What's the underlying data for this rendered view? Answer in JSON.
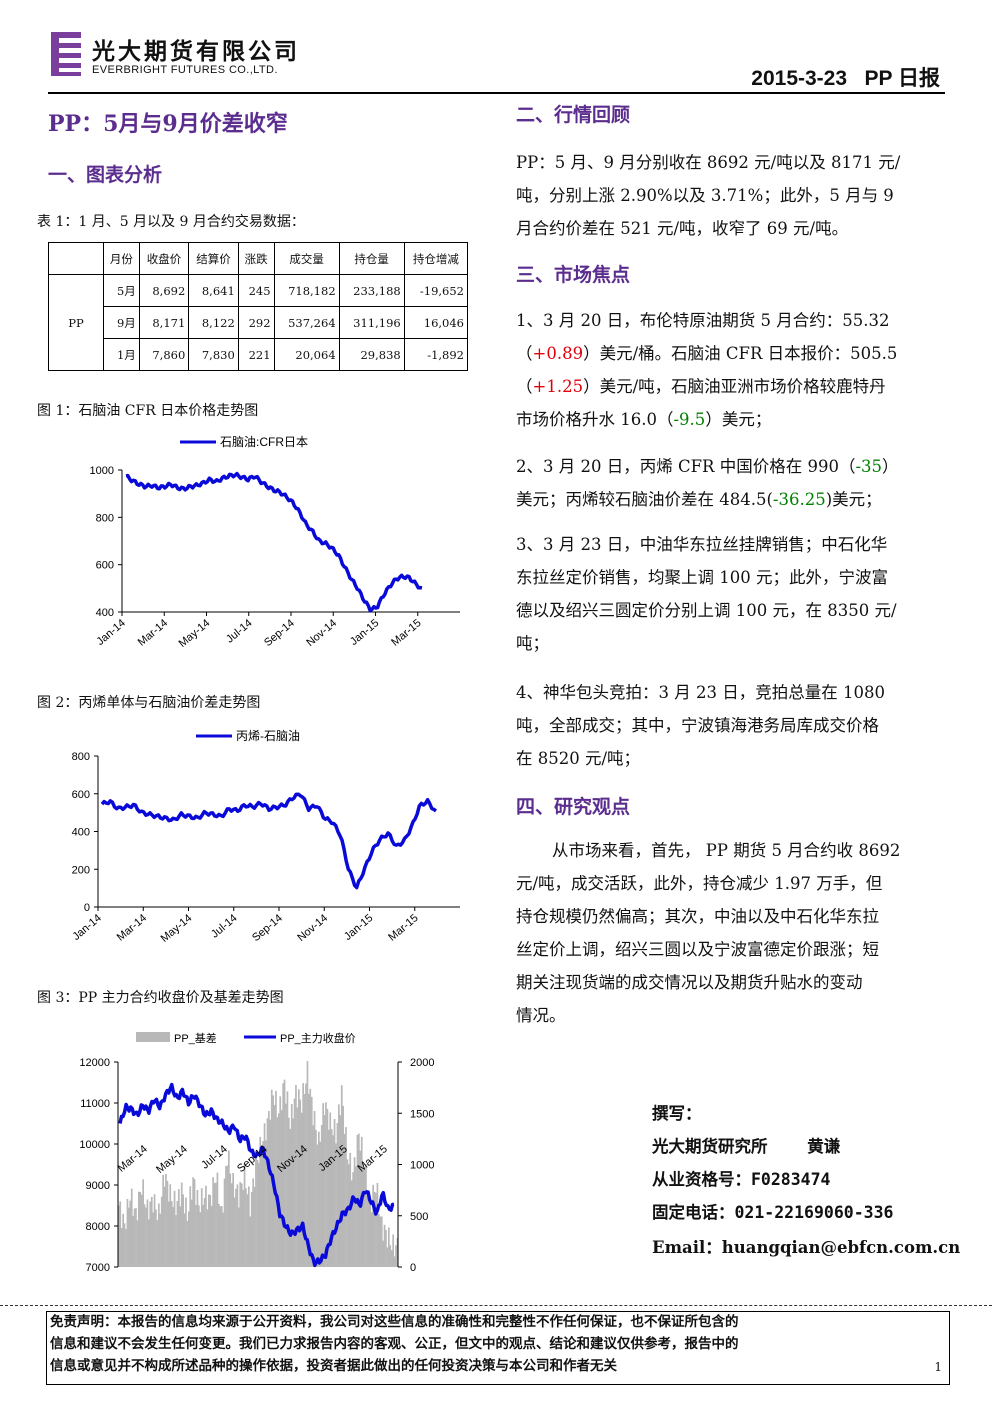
{
  "header": {
    "company_cn": "光大期货有限公司",
    "company_en": "EVERBRIGHT FUTURES CO.,LTD.",
    "date_label": "2015-3-23   PP 日报"
  },
  "report_title": "PP：5月与9月价差收窄",
  "left": {
    "section1": "一、图表分析",
    "table_caption": "表 1：1 月、5 月以及 9 月合约交易数据：",
    "table": {
      "headers": [
        "月份",
        "收盘价",
        "结算价",
        "涨跌",
        "成交量",
        "持仓量",
        "持仓增减"
      ],
      "row_group": "PP",
      "rows": [
        [
          "5月",
          "8,692",
          "8,641",
          "245",
          "718,182",
          "233,188",
          "-19,652"
        ],
        [
          "9月",
          "8,171",
          "8,122",
          "292",
          "537,264",
          "311,196",
          "16,046"
        ],
        [
          "1月",
          "7,860",
          "7,830",
          "221",
          "20,064",
          "29,838",
          "-1,892"
        ]
      ]
    },
    "fig1_caption": "图 1：石脑油 CFR 日本价格走势图",
    "fig2_caption": "图 2：丙烯单体与石脑油价差走势图",
    "fig3_caption": "图 3：PP 主力合约收盘价及基差走势图"
  },
  "chart_data": [
    {
      "type": "line",
      "series": [
        {
          "name": "石脑油:CFR日本",
          "color": "#0a0ad8",
          "values": [
            975,
            955,
            940,
            930,
            935,
            925,
            930,
            940,
            925,
            920,
            930,
            935,
            945,
            960,
            950,
            965,
            975,
            980,
            970,
            960,
            975,
            950,
            930,
            915,
            905,
            885,
            860,
            820,
            770,
            740,
            700,
            690,
            670,
            640,
            590,
            540,
            500,
            450,
            410,
            420,
            470,
            510,
            540,
            550,
            545,
            520,
            495
          ]
        }
      ],
      "x_ticks": [
        "Jan-14",
        "Mar-14",
        "May-14",
        "Jul-14",
        "Sep-14",
        "Nov-14",
        "Jan-15",
        "Mar-15"
      ],
      "y_ticks": [
        "400",
        "600",
        "800",
        "1000"
      ],
      "ylim": [
        400,
        1000
      ]
    },
    {
      "type": "line",
      "series": [
        {
          "name": "丙烯-石脑油",
          "color": "#0a0ad8",
          "values": [
            545,
            560,
            520,
            530,
            540,
            500,
            490,
            480,
            470,
            460,
            490,
            480,
            470,
            500,
            490,
            480,
            520,
            510,
            540,
            530,
            550,
            520,
            530,
            540,
            580,
            600,
            520,
            540,
            470,
            450,
            380,
            200,
            100,
            200,
            300,
            360,
            390,
            320,
            350,
            430,
            540,
            560,
            500
          ]
        }
      ],
      "x_ticks": [
        "Jan-14",
        "Mar-14",
        "May-14",
        "Jul-14",
        "Sep-14",
        "Nov-14",
        "Jan-15",
        "Mar-15"
      ],
      "y_ticks": [
        "0",
        "200",
        "400",
        "600",
        "800"
      ],
      "ylim": [
        0,
        800
      ]
    },
    {
      "type": "area",
      "series": [
        {
          "name": "PP_基差",
          "color": "#b8b8b8",
          "axis": "right",
          "values": [
            600,
            400,
            700,
            500,
            800,
            550,
            650,
            500,
            900,
            700,
            600,
            750,
            500,
            850,
            600,
            700,
            650,
            900,
            500,
            1100,
            800,
            700,
            900,
            600,
            1000,
            1200,
            1400,
            1700,
            1500,
            1800,
            1400,
            1700,
            1600,
            1900,
            1500,
            1200,
            1600,
            1400,
            1300,
            1700,
            1100,
            900,
            1300,
            1000,
            600,
            800,
            400,
            300,
            200
          ]
        },
        {
          "name": "PP_主力收盘价",
          "color": "#0a0ad8",
          "axis": "left",
          "values": [
            10500,
            10900,
            10850,
            10700,
            10950,
            10800,
            11100,
            10900,
            11200,
            11400,
            11100,
            11300,
            11000,
            11200,
            10950,
            10700,
            10800,
            10600,
            10500,
            10300,
            10450,
            10100,
            10200,
            9800,
            9700,
            9900,
            9500,
            9000,
            8300,
            8000,
            7800,
            7900,
            8000,
            7500,
            7100,
            7150,
            7300,
            7700,
            8000,
            8300,
            8400,
            8700,
            8500,
            8900,
            8600,
            8300,
            8800,
            8400,
            8500
          ]
        }
      ],
      "x_ticks": [
        "Mar-14",
        "May-14",
        "Jul-14",
        "Sep-14",
        "Nov-14",
        "Jan-15",
        "Mar-15"
      ],
      "y_left_ticks": [
        "7000",
        "8000",
        "9000",
        "10000",
        "11000",
        "12000"
      ],
      "y_right_ticks": [
        "0",
        "500",
        "1000",
        "1500",
        "2000"
      ],
      "ylim_left": [
        7000,
        12000
      ],
      "ylim_right": [
        0,
        2000
      ]
    }
  ],
  "right": {
    "section2": "二、行情回顾",
    "review": [
      "PP：5 月、9 月分别收在 8692 元/吨以及 8171 元/",
      "吨，分别上涨 2.90%以及 3.71%；此外，5 月与 9",
      "月合约价差在 521 元/吨，收窄了 69 元/吨。"
    ],
    "section3": "三、市场焦点",
    "focus1": {
      "l1": "1、3 月 20 日，布伦特原油期货 5 月合约：55.32",
      "l2a": "（",
      "l2b": "+0.89",
      "l2c": "）美元/桶。石脑油 CFR 日本报价：505.5",
      "l3a": "（",
      "l3b": "+1.25",
      "l3c": "）美元/吨，石脑油亚洲市场价格较鹿特丹",
      "l4a": "市场价格升水 16.0（",
      "l4b": "-9.5",
      "l4c": "）美元；"
    },
    "focus2": {
      "l1a": "2、3 月 20 日，丙烯 CFR 中国价格在 990（",
      "l1b": "-35",
      "l1c": "）",
      "l2a": "美元；丙烯较石脑油价差在 484.5(",
      "l2b": "-36.25",
      "l2c": ")美元；"
    },
    "focus3": [
      "3、3 月 23 日，中油华东拉丝挂牌销售；中石化华",
      "东拉丝定价销售，均聚上调 100 元；此外，宁波富",
      "德以及绍兴三圆定价分别上调 100 元，在 8350 元/",
      "吨；"
    ],
    "focus4": [
      "4、神华包头竞拍：3 月 23 日，竞拍总量在 1080",
      "吨，全部成交；其中，宁波镇海港务局库成交价格",
      "在 8520 元/吨；"
    ],
    "section4": "四、研究观点",
    "view": [
      "从市场来看，首先， PP 期货 5 月合约收 8692",
      "元/吨，成交活跃，此外，持仓减少 1.97 万手，但",
      "持仓规模仍然偏高；其次，中油以及中石化华东拉",
      "丝定价上调，绍兴三圆以及宁波富德定价跟涨；短",
      "期关注现货端的成交情况以及期货升贴水的变动",
      "情况。"
    ]
  },
  "author": {
    "written": "撰写：",
    "line1": "光大期货研究所    黄谦",
    "line2": "从业资格号：F0283474",
    "line3": "固定电话：021-22169060-336",
    "line4": "Email：huangqian@ebfcn.com.cn"
  },
  "disclaimer": [
    "免责声明：本报告的信息均来源于公开资料，我公司对这些信息的准确性和完整性不作任何保证，也不保证所包含的",
    "信息和建议不会发生任何变更。我们已力求报告内容的客观、公正，但文中的观点、结论和建议仅供参考，报告中的",
    "信息或意见并不构成所述品种的操作依据，投资者据此做出的任何投资决策与本公司和作者无关"
  ],
  "page_number": "1"
}
